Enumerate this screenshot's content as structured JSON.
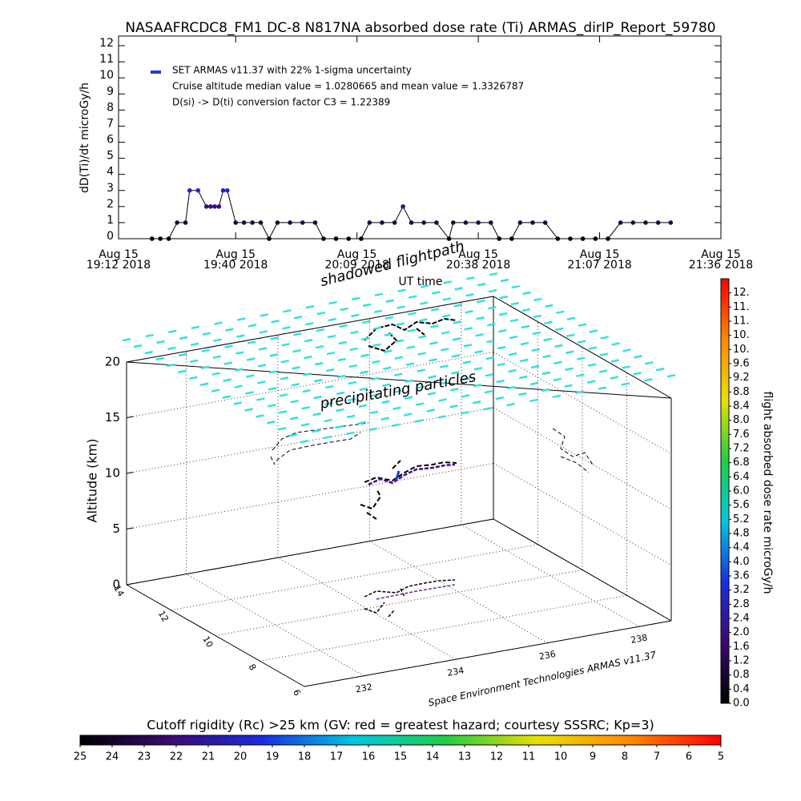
{
  "chart_data": [
    {
      "type": "line",
      "title": "NASAAFRCDC8_FM1 DC-8   N817NA absorbed dose rate (Ti) ARMAS_dirIP_Report_59780",
      "ylabel": "dD(Ti)/dt microGy/h",
      "xlabel": "UT time",
      "legend": [
        "SET ARMAS v11.37 with 22% 1-sigma uncertainty",
        "Cruise altitude median value = 1.0280665 and mean value = 1.3326787",
        "D(si) -> D(ti) conversion factor C3 = 1.22389"
      ],
      "legend_color": "#1a3fd0",
      "line_color": "#000000",
      "x": [
        "2018-08-15T19:20",
        "2018-08-15T19:22",
        "2018-08-15T19:24",
        "2018-08-15T19:26",
        "2018-08-15T19:28",
        "2018-08-15T19:29",
        "2018-08-15T19:31",
        "2018-08-15T19:33",
        "2018-08-15T19:34",
        "2018-08-15T19:35",
        "2018-08-15T19:36",
        "2018-08-15T19:37",
        "2018-08-15T19:38",
        "2018-08-15T19:40",
        "2018-08-15T19:42",
        "2018-08-15T19:44",
        "2018-08-15T19:46",
        "2018-08-15T19:48",
        "2018-08-15T19:50",
        "2018-08-15T19:53",
        "2018-08-15T19:56",
        "2018-08-15T19:59",
        "2018-08-15T20:01",
        "2018-08-15T20:04",
        "2018-08-15T20:07",
        "2018-08-15T20:10",
        "2018-08-15T20:12",
        "2018-08-15T20:15",
        "2018-08-15T20:18",
        "2018-08-15T20:20",
        "2018-08-15T20:22",
        "2018-08-15T20:25",
        "2018-08-15T20:28",
        "2018-08-15T20:31",
        "2018-08-15T20:32",
        "2018-08-15T20:35",
        "2018-08-15T20:38",
        "2018-08-15T20:41",
        "2018-08-15T20:43",
        "2018-08-15T20:46",
        "2018-08-15T20:48",
        "2018-08-15T20:51",
        "2018-08-15T20:54",
        "2018-08-15T20:57",
        "2018-08-15T21:00",
        "2018-08-15T21:03",
        "2018-08-15T21:06",
        "2018-08-15T21:09",
        "2018-08-15T21:12",
        "2018-08-15T21:15",
        "2018-08-15T21:18",
        "2018-08-15T21:21",
        "2018-08-15T21:24"
      ],
      "values": [
        0,
        0,
        0,
        1,
        1,
        3,
        3,
        2,
        2,
        2,
        2,
        3,
        3,
        1,
        1,
        1,
        1,
        0,
        1,
        1,
        1,
        1,
        0,
        0,
        0,
        0,
        1,
        1,
        1,
        2,
        1,
        1,
        1,
        0,
        1,
        1,
        1,
        1,
        0,
        0,
        1,
        1,
        1,
        0,
        0,
        0,
        0,
        0,
        1,
        1,
        1,
        1,
        1
      ],
      "xlim": [
        "2018-08-15T19:12",
        "2018-08-15T21:36"
      ],
      "xticks": [
        {
          "value": "2018-08-15T19:12",
          "label": [
            "Aug 15",
            "19:12 2018"
          ]
        },
        {
          "value": "2018-08-15T19:40",
          "label": [
            "Aug 15",
            "19:40 2018"
          ]
        },
        {
          "value": "2018-08-15T20:09",
          "label": [
            "Aug 15",
            "20:09 2018"
          ]
        },
        {
          "value": "2018-08-15T20:38",
          "label": [
            "Aug 15",
            "20:38 2018"
          ]
        },
        {
          "value": "2018-08-15T21:07",
          "label": [
            "Aug 15",
            "21:07 2018"
          ]
        },
        {
          "value": "2018-08-15T21:36",
          "label": [
            "Aug 15",
            "21:36 2018"
          ]
        }
      ],
      "ylim": [
        0,
        12.6
      ],
      "yticks": [
        0,
        1,
        2,
        3,
        4,
        5,
        6,
        7,
        8,
        9,
        10,
        11,
        12
      ]
    },
    {
      "type": "scatter3d",
      "zlabel": "Altitude (km)",
      "zlim": [
        0,
        20
      ],
      "zticks": [
        0,
        5,
        10,
        15,
        20
      ],
      "xlim": [
        230.7,
        238.7
      ],
      "xticks": [
        232,
        234,
        236,
        238
      ],
      "ylim": [
        6,
        14
      ],
      "yticks": [
        6,
        8,
        10,
        12,
        14
      ],
      "annotations": [
        "shadowed flightpath",
        "precipitating particles",
        "Space Environment Technologies ARMAS v11.37"
      ],
      "particle_color": "#33e0e0"
    },
    {
      "type": "colorbar",
      "orientation": "vertical",
      "title": "flight absorbed dose rate microGy/h",
      "colormap": [
        "#000000",
        "#3b0a72",
        "#1a2ee0",
        "#00c8e0",
        "#22cc44",
        "#e8e000",
        "#ff8800",
        "#ff0000"
      ],
      "ylim": [
        0,
        12
      ],
      "yticks": [
        {
          "value": 0,
          "label": "0.0"
        },
        0.4,
        0.8,
        1.2,
        1.6,
        {
          "value": 2,
          "label": "2.0"
        },
        2.4,
        2.8,
        3.2,
        3.6,
        {
          "value": 4,
          "label": "4.0"
        },
        4.4,
        4.8,
        5.2,
        5.6,
        {
          "value": 6,
          "label": "6.0"
        },
        6.4,
        6.8,
        7.2,
        7.6,
        {
          "value": 8,
          "label": "8.0"
        },
        8.4,
        8.8,
        9.2,
        9.6,
        {
          "value": 10,
          "label": "10."
        },
        {
          "value": 10.4,
          "label": "10."
        },
        {
          "value": 10.8,
          "label": "11."
        },
        {
          "value": 11.2,
          "label": "11."
        },
        {
          "value": 11.6,
          "label": "12."
        }
      ]
    },
    {
      "type": "colorbar",
      "orientation": "horizontal",
      "title": "Cutoff rigidity (Rc) >25 km (GV: red = greatest hazard; courtesy SSSRC; Kp=3)",
      "colormap": [
        "#000000",
        "#3b0a72",
        "#1a2ee0",
        "#00c8e0",
        "#22cc44",
        "#e8e000",
        "#ff8800",
        "#ff0000"
      ],
      "xlim": [
        25,
        5
      ],
      "xticks": [
        25,
        24,
        23,
        22,
        21,
        20,
        19,
        18,
        17,
        16,
        15,
        14,
        13,
        12,
        11,
        10,
        9,
        8,
        7,
        6,
        5
      ]
    }
  ]
}
